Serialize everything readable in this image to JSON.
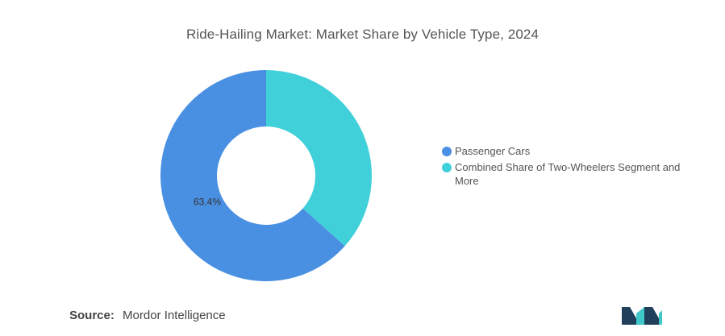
{
  "chart_data": {
    "type": "pie",
    "title": "Ride-Hailing Market: Market Share by Vehicle Type, 2024",
    "categories": [
      "Passenger Cars",
      "Combined Share of Two-Wheelers Segment and More"
    ],
    "values": [
      63.4,
      36.6
    ],
    "data_labels": [
      "63.4%",
      ""
    ],
    "colors": [
      "#4A90E2",
      "#40D0DA"
    ],
    "donut": true,
    "legend_position": "right"
  },
  "source": {
    "prefix": "Source:",
    "text": "Mordor Intelligence"
  },
  "logo": {
    "icon": "mordor-intelligence-logo",
    "colors": [
      "#1F3F5B",
      "#3FC7C9"
    ]
  }
}
